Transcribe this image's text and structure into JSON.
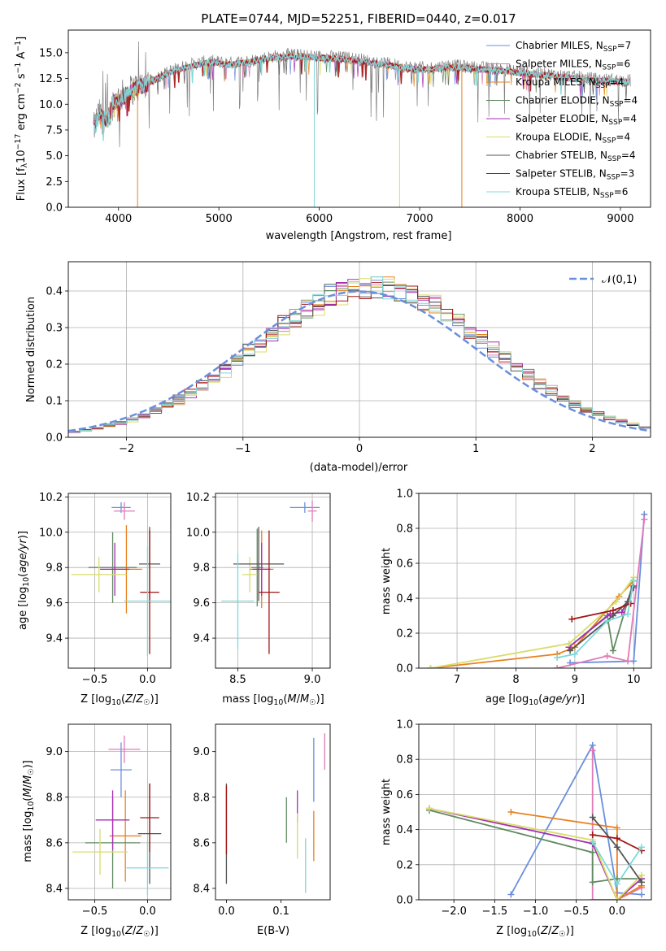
{
  "colors": [
    "#6a8fdc",
    "#e07ab8",
    "#e9811f",
    "#608a60",
    "#a52fb0",
    "#d9dc6b",
    "#555555",
    "#a11515",
    "#7fd8d8"
  ],
  "chart_data": [
    {
      "type": "line",
      "title": "PLATE=0744, MJD=52251, FIBERID=0440, z=0.017",
      "xlabel": "wavelength [Angstrom, rest frame]",
      "ylabel": "Flux [fλ10⁻¹⁷ erg cm⁻² s⁻¹ A⁻¹]",
      "xlim": [
        3500,
        9300
      ],
      "ylim": [
        0,
        17.2
      ],
      "xticks": [
        4000,
        5000,
        6000,
        7000,
        8000,
        9000
      ],
      "yticks": [
        0.0,
        2.5,
        5.0,
        7.5,
        10.0,
        12.5,
        15.0
      ],
      "x_range": [
        3750,
        9100
      ],
      "continuum": [
        [
          3750,
          7.5
        ],
        [
          3800,
          9.0
        ],
        [
          3900,
          8.6
        ],
        [
          3950,
          10.3
        ],
        [
          4000,
          10.6
        ],
        [
          4100,
          11.2
        ],
        [
          4200,
          11.8
        ],
        [
          4300,
          12.2
        ],
        [
          4500,
          13.2
        ],
        [
          4700,
          13.8
        ],
        [
          4900,
          14.2
        ],
        [
          5100,
          14.0
        ],
        [
          5300,
          14.2
        ],
        [
          5500,
          14.6
        ],
        [
          5700,
          14.8
        ],
        [
          5900,
          14.7
        ],
        [
          6100,
          14.6
        ],
        [
          6300,
          14.5
        ],
        [
          6500,
          14.2
        ],
        [
          6700,
          13.9
        ],
        [
          6900,
          13.6
        ],
        [
          7100,
          13.5
        ],
        [
          7300,
          13.8
        ],
        [
          7500,
          13.6
        ],
        [
          7700,
          13.5
        ],
        [
          7900,
          13.3
        ],
        [
          8200,
          13.0
        ],
        [
          8500,
          12.7
        ],
        [
          8800,
          12.4
        ],
        [
          9100,
          12.3
        ]
      ],
      "legend_placement": "upper-right",
      "legend": [
        "Chabrier MILES, N_SSP=7",
        "Salpeter MILES, N_SSP=6",
        "Kroupa MILES, N_SSP=4",
        "Chabrier ELODIE, N_SSP=4",
        "Salpeter ELODIE, N_SSP=4",
        "Kroupa ELODIE, N_SSP=4",
        "Chabrier STELIB, N_SSP=4",
        "Salpeter STELIB, N_SSP=3",
        "Kroupa STELIB, N_SSP=6"
      ],
      "legend_html": [
        "Chabrier MILES, N<tspan font-size='9' dy='3'>SSP</tspan><tspan dy='-3'>=7</tspan>",
        "Salpeter MILES, N<tspan font-size='9' dy='3'>SSP</tspan><tspan dy='-3'>=6</tspan>",
        "Kroupa MILES, N<tspan font-size='9' dy='3'>SSP</tspan><tspan dy='-3'>=4</tspan>",
        "Chabrier ELODIE, N<tspan font-size='9' dy='3'>SSP</tspan><tspan dy='-3'>=4</tspan>",
        "Salpeter ELODIE, N<tspan font-size='9' dy='3'>SSP</tspan><tspan dy='-3'>=4</tspan>",
        "Kroupa ELODIE, N<tspan font-size='9' dy='3'>SSP</tspan><tspan dy='-3'>=4</tspan>",
        "Chabrier STELIB, N<tspan font-size='9' dy='3'>SSP</tspan><tspan dy='-3'>=4</tspan>",
        "Salpeter STELIB, N<tspan font-size='9' dy='3'>SSP</tspan><tspan dy='-3'>=3</tspan>",
        "Kroupa STELIB, N<tspan font-size='9' dy='3'>SSP</tspan><tspan dy='-3'>=6</tspan>"
      ],
      "spikes": [
        {
          "x": 4190,
          "color": "#e9811f"
        },
        {
          "x": 5950,
          "color": "#7fd8d8"
        },
        {
          "x": 6800,
          "color": "#d9dc6b"
        },
        {
          "x": 7420,
          "color": "#e9811f"
        }
      ]
    },
    {
      "type": "histogram",
      "xlabel": "(data-model)/error",
      "ylabel": "Normed distribution",
      "xlim": [
        -2.5,
        2.5
      ],
      "ylim": [
        0,
        0.48
      ],
      "xticks": [
        -2,
        -1,
        0,
        1,
        2
      ],
      "yticks": [
        0.0,
        0.1,
        0.2,
        0.3,
        0.4
      ],
      "bin_width": 0.1,
      "reference_curve": {
        "name": "𝒩(0,1)",
        "style": "dashed",
        "mean": 0,
        "sigma": 1
      },
      "legend_placement": "upper-right",
      "grid": true
    },
    {
      "type": "scatter",
      "xlabel": "Z [log10(Z/Z☉)]",
      "ylabel": "age  [log10(age/yr)]",
      "xlim": [
        -0.75,
        0.22
      ],
      "ylim": [
        9.23,
        10.22
      ],
      "xticks": [
        -0.5,
        0.0
      ],
      "yticks": [
        9.4,
        9.6,
        9.8,
        10.0,
        10.2
      ],
      "grid": true,
      "points": [
        {
          "x": -0.25,
          "y": 10.14,
          "xerr": 0.09,
          "yerr": 0.03,
          "color": "#6a8fdc"
        },
        {
          "x": -0.22,
          "y": 10.12,
          "xerr": 0.1,
          "yerr": 0.05,
          "color": "#e07ab8"
        },
        {
          "x": -0.2,
          "y": 9.79,
          "xerr": 0.15,
          "yerr": 0.25,
          "color": "#e9811f"
        },
        {
          "x": -0.33,
          "y": 9.8,
          "xerr": 0.23,
          "yerr": 0.2,
          "color": "#608a60"
        },
        {
          "x": -0.31,
          "y": 9.79,
          "xerr": 0.14,
          "yerr": 0.15,
          "color": "#a52fb0"
        },
        {
          "x": -0.46,
          "y": 9.76,
          "xerr": 0.26,
          "yerr": 0.1,
          "color": "#d9dc6b"
        },
        {
          "x": 0.02,
          "y": 9.82,
          "xerr": 0.1,
          "yerr": 0.21,
          "color": "#555555"
        },
        {
          "x": 0.02,
          "y": 9.66,
          "xerr": 0.09,
          "yerr": 0.35,
          "color": "#a11515"
        },
        {
          "x": 0.0,
          "y": 9.61,
          "xerr": 0.22,
          "yerr": 0.31,
          "color": "#7fd8d8"
        }
      ]
    },
    {
      "type": "scatter",
      "xlabel": "mass [log10(M/M☉)]",
      "xlim": [
        8.35,
        9.12
      ],
      "ylim": [
        9.23,
        10.22
      ],
      "xticks": [
        8.5,
        9.0
      ],
      "yticks": [
        9.4,
        9.6,
        9.8,
        10.0,
        10.2
      ],
      "grid": true,
      "points": [
        {
          "x": 8.95,
          "y": 10.14,
          "xerr": 0.1,
          "yerr": 0.03,
          "color": "#6a8fdc"
        },
        {
          "x": 9.0,
          "y": 10.12,
          "xerr": 0.03,
          "yerr": 0.06,
          "color": "#e07ab8"
        },
        {
          "x": 8.66,
          "y": 9.79,
          "xerr": 0.08,
          "yerr": 0.22,
          "color": "#e9811f"
        },
        {
          "x": 8.63,
          "y": 9.8,
          "xerr": 0.04,
          "yerr": 0.22,
          "color": "#608a60"
        },
        {
          "x": 8.66,
          "y": 9.79,
          "xerr": 0.06,
          "yerr": 0.15,
          "color": "#a52fb0"
        },
        {
          "x": 8.58,
          "y": 9.76,
          "xerr": 0.05,
          "yerr": 0.1,
          "color": "#d9dc6b"
        },
        {
          "x": 8.64,
          "y": 9.82,
          "xerr": 0.17,
          "yerr": 0.21,
          "color": "#555555"
        },
        {
          "x": 8.71,
          "y": 9.66,
          "xerr": 0.07,
          "yerr": 0.35,
          "color": "#a11515"
        },
        {
          "x": 8.5,
          "y": 9.61,
          "xerr": 0.11,
          "yerr": 0.27,
          "color": "#7fd8d8"
        }
      ]
    },
    {
      "type": "line",
      "xlabel": "age  [log10(age/yr)]",
      "ylabel": "mass weight",
      "xlim": [
        6.35,
        10.3
      ],
      "ylim": [
        0,
        1.0
      ],
      "xticks": [
        7,
        8,
        9,
        10
      ],
      "yticks": [
        0.0,
        0.2,
        0.4,
        0.6,
        0.8,
        1.0
      ],
      "grid": true,
      "series": [
        {
          "color": "#6a8fdc",
          "points": [
            [
              8.92,
              0.03
            ],
            [
              10.0,
              0.04
            ],
            [
              10.18,
              0.88
            ]
          ]
        },
        {
          "color": "#e07ab8",
          "points": [
            [
              8.7,
              0.0
            ],
            [
              9.55,
              0.07
            ],
            [
              9.9,
              0.04
            ],
            [
              10.18,
              0.85
            ]
          ]
        },
        {
          "color": "#e9811f",
          "points": [
            [
              6.55,
              0.0
            ],
            [
              8.7,
              0.08
            ],
            [
              9.0,
              0.12
            ],
            [
              9.75,
              0.41
            ],
            [
              10.0,
              0.5
            ]
          ]
        },
        {
          "color": "#608a60",
          "points": [
            [
              8.9,
              0.12
            ],
            [
              9.55,
              0.3
            ],
            [
              9.65,
              0.1
            ],
            [
              10.0,
              0.5
            ]
          ]
        },
        {
          "color": "#a52fb0",
          "points": [
            [
              8.9,
              0.12
            ],
            [
              9.6,
              0.31
            ],
            [
              9.8,
              0.32
            ],
            [
              10.0,
              0.46
            ]
          ]
        },
        {
          "color": "#d9dc6b",
          "points": [
            [
              6.55,
              0.0
            ],
            [
              8.9,
              0.14
            ],
            [
              9.7,
              0.38
            ],
            [
              10.0,
              0.52
            ]
          ]
        },
        {
          "color": "#555555",
          "points": [
            [
              8.92,
              0.1
            ],
            [
              9.65,
              0.3
            ],
            [
              9.9,
              0.38
            ],
            [
              10.0,
              0.47
            ]
          ]
        },
        {
          "color": "#a11515",
          "points": [
            [
              8.95,
              0.28
            ],
            [
              9.65,
              0.33
            ],
            [
              9.95,
              0.37
            ]
          ]
        },
        {
          "color": "#7fd8d8",
          "points": [
            [
              8.7,
              0.06
            ],
            [
              9.0,
              0.08
            ],
            [
              9.55,
              0.27
            ],
            [
              9.9,
              0.31
            ],
            [
              10.0,
              0.5
            ]
          ]
        }
      ]
    },
    {
      "type": "scatter",
      "xlabel": "Z [log10(Z/Z☉)]",
      "ylabel": "mass [log10(M/M☉)]",
      "xlim": [
        -0.75,
        0.22
      ],
      "ylim": [
        8.35,
        9.12
      ],
      "xticks": [
        -0.5,
        0.0
      ],
      "yticks": [
        8.4,
        8.6,
        8.8,
        9.0
      ],
      "grid": true,
      "points": [
        {
          "x": -0.25,
          "y": 8.92,
          "xerr": 0.1,
          "yerr": 0.12,
          "color": "#6a8fdc"
        },
        {
          "x": -0.22,
          "y": 9.01,
          "xerr": 0.15,
          "yerr": 0.06,
          "color": "#e07ab8"
        },
        {
          "x": -0.21,
          "y": 8.63,
          "xerr": 0.15,
          "yerr": 0.2,
          "color": "#e9811f"
        },
        {
          "x": -0.33,
          "y": 8.6,
          "xerr": 0.26,
          "yerr": 0.2,
          "color": "#608a60"
        },
        {
          "x": -0.33,
          "y": 8.7,
          "xerr": 0.16,
          "yerr": 0.13,
          "color": "#a52fb0"
        },
        {
          "x": -0.45,
          "y": 8.56,
          "xerr": 0.26,
          "yerr": 0.1,
          "color": "#d9dc6b"
        },
        {
          "x": 0.02,
          "y": 8.64,
          "xerr": 0.11,
          "yerr": 0.22,
          "color": "#555555"
        },
        {
          "x": 0.02,
          "y": 8.71,
          "xerr": 0.09,
          "yerr": 0.15,
          "color": "#a11515"
        },
        {
          "x": 0.0,
          "y": 8.49,
          "xerr": 0.2,
          "yerr": 0.12,
          "color": "#7fd8d8"
        }
      ]
    },
    {
      "type": "scatter",
      "xlabel": "E(B-V)",
      "xlim": [
        -0.02,
        0.19
      ],
      "ylim": [
        8.35,
        9.12
      ],
      "xticks": [
        0.0,
        0.1
      ],
      "yticks": [
        8.4,
        8.6,
        8.8,
        9.0
      ],
      "grid": false,
      "points": [
        {
          "x": 0.16,
          "y": 8.92,
          "xerr": 0,
          "yerr": 0.14,
          "color": "#6a8fdc"
        },
        {
          "x": 0.18,
          "y": 9.0,
          "xerr": 0,
          "yerr": 0.08,
          "color": "#e07ab8"
        },
        {
          "x": 0.16,
          "y": 8.63,
          "xerr": 0,
          "yerr": 0.11,
          "color": "#e9811f"
        },
        {
          "x": 0.11,
          "y": 8.7,
          "xerr": 0,
          "yerr": 0.1,
          "color": "#608a60"
        },
        {
          "x": 0.13,
          "y": 8.76,
          "xerr": 0,
          "yerr": 0.07,
          "color": "#a52fb0"
        },
        {
          "x": 0.13,
          "y": 8.63,
          "xerr": 0,
          "yerr": 0.1,
          "color": "#d9dc6b"
        },
        {
          "x": 0.0,
          "y": 8.64,
          "xerr": 0,
          "yerr": 0.22,
          "color": "#555555"
        },
        {
          "x": 0.0,
          "y": 8.7,
          "xerr": 0,
          "yerr": 0.15,
          "color": "#a11515"
        },
        {
          "x": 0.145,
          "y": 8.5,
          "xerr": 0,
          "yerr": 0.12,
          "color": "#7fd8d8"
        }
      ]
    },
    {
      "type": "line",
      "xlabel": "Z [log10(Z/Z☉)]",
      "ylabel": "mass weight",
      "xlim": [
        -2.43,
        0.42
      ],
      "ylim": [
        0,
        1.0
      ],
      "xticks": [
        -2.0,
        -1.5,
        -1.0,
        -0.5,
        0.0
      ],
      "yticks": [
        0.0,
        0.2,
        0.4,
        0.6,
        0.8,
        1.0
      ],
      "grid": true,
      "series": [
        {
          "color": "#6a8fdc",
          "points": [
            [
              -1.3,
              0.03
            ],
            [
              -0.3,
              0.88
            ],
            [
              0.0,
              0.04
            ],
            [
              0.3,
              0.03
            ]
          ]
        },
        {
          "color": "#e07ab8",
          "points": [
            [
              -0.3,
              0.85
            ],
            [
              -0.3,
              0.0
            ],
            [
              0.0,
              0.0
            ],
            [
              0.3,
              0.07
            ]
          ]
        },
        {
          "color": "#e9811f",
          "points": [
            [
              -1.3,
              0.5
            ],
            [
              0.0,
              0.41
            ],
            [
              0.0,
              0.0
            ],
            [
              0.3,
              0.08
            ]
          ]
        },
        {
          "color": "#608a60",
          "points": [
            [
              -2.3,
              0.51
            ],
            [
              -0.3,
              0.27
            ],
            [
              -0.3,
              0.1
            ],
            [
              0.0,
              0.12
            ],
            [
              0.3,
              0.12
            ]
          ]
        },
        {
          "color": "#a52fb0",
          "points": [
            [
              -2.3,
              0.52
            ],
            [
              -0.3,
              0.32
            ],
            [
              0.0,
              0.0
            ],
            [
              0.3,
              0.12
            ]
          ]
        },
        {
          "color": "#d9dc6b",
          "points": [
            [
              -2.3,
              0.52
            ],
            [
              -0.3,
              0.34
            ],
            [
              0.0,
              0.0
            ],
            [
              0.3,
              0.14
            ]
          ]
        },
        {
          "color": "#555555",
          "points": [
            [
              -0.3,
              0.47
            ],
            [
              0.0,
              0.3
            ],
            [
              0.3,
              0.1
            ]
          ]
        },
        {
          "color": "#a11515",
          "points": [
            [
              -0.3,
              0.37
            ],
            [
              0.0,
              0.35
            ],
            [
              0.3,
              0.28
            ]
          ]
        },
        {
          "color": "#7fd8d8",
          "points": [
            [
              -0.3,
              0.33
            ],
            [
              0.0,
              0.09
            ],
            [
              0.3,
              0.3
            ]
          ]
        }
      ]
    }
  ]
}
